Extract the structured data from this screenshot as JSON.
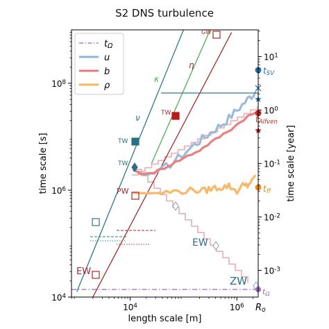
{
  "chart_data": {
    "type": "line",
    "title": "S2 DNS turbulence",
    "xlabel": "length scale [m]",
    "ylabel": "time scale [s]",
    "ylabel_right": "time scale [year]",
    "x_scale": "log",
    "y_scale": "log",
    "x_range_log10": [
      2.9,
      6.4
    ],
    "y_range_log10": [
      4.0,
      9.0
    ],
    "x_ticks": [
      {
        "log10": 4,
        "label": "10",
        "exp": "4"
      },
      {
        "log10": 6,
        "label": "10",
        "exp": "6"
      }
    ],
    "y_ticks": [
      {
        "log10": 4,
        "label": "10",
        "exp": "4"
      },
      {
        "log10": 6,
        "label": "10",
        "exp": "6"
      },
      {
        "log10": 8,
        "label": "10",
        "exp": "8"
      }
    ],
    "y_right_ticks": [
      {
        "log10s": 8.499,
        "label": "10",
        "exp": "1"
      },
      {
        "log10s": 7.499,
        "label": "10",
        "exp": "0"
      },
      {
        "log10s": 6.499,
        "label": "10",
        "exp": "-1"
      },
      {
        "log10s": 5.499,
        "label": "10",
        "exp": "-2"
      },
      {
        "log10s": 4.499,
        "label": "10",
        "exp": "-3"
      }
    ],
    "right_axis_label": "R",
    "right_axis_label_sub": "o",
    "grid": false,
    "legend": {
      "placement": "top-left",
      "entries": [
        {
          "label": "t",
          "sub": "Ω",
          "color": "#9467bd",
          "style": "dashdot"
        },
        {
          "label": "u",
          "color": "#8fb3d6",
          "style": "solid"
        },
        {
          "label": "b",
          "color": "#e87878",
          "style": "solid"
        },
        {
          "label": "ρ",
          "color": "#f5b461",
          "style": "solid"
        }
      ]
    },
    "series": [
      {
        "name": "u",
        "color": "#9bbbd9",
        "points": [
          [
            4.05,
            6.38
          ],
          [
            4.3,
            6.28
          ],
          [
            4.6,
            6.38
          ],
          [
            4.9,
            6.6
          ],
          [
            5.2,
            6.85
          ],
          [
            5.4,
            7.0
          ],
          [
            5.6,
            7.15
          ],
          [
            5.8,
            7.3
          ],
          [
            6.0,
            7.5
          ],
          [
            6.2,
            7.7
          ],
          [
            6.35,
            7.85
          ]
        ]
      },
      {
        "name": "b",
        "color": "#e88080",
        "points": [
          [
            4.05,
            6.4
          ],
          [
            4.2,
            6.3
          ],
          [
            4.45,
            6.33
          ],
          [
            4.7,
            6.45
          ],
          [
            5.0,
            6.6
          ],
          [
            5.3,
            6.75
          ],
          [
            5.6,
            6.95
          ],
          [
            5.9,
            7.15
          ],
          [
            6.2,
            7.38
          ],
          [
            6.35,
            7.45
          ]
        ]
      },
      {
        "name": "ρ",
        "color": "#f8b867",
        "points": [
          [
            4.05,
            5.95
          ],
          [
            4.3,
            5.94
          ],
          [
            4.6,
            5.95
          ],
          [
            4.9,
            5.98
          ],
          [
            5.2,
            6.0
          ],
          [
            5.4,
            5.99
          ],
          [
            5.55,
            6.04
          ],
          [
            5.7,
            6.05
          ],
          [
            5.85,
            6.08
          ],
          [
            6.0,
            5.98
          ],
          [
            6.15,
            6.12
          ],
          [
            6.25,
            6.1
          ],
          [
            6.35,
            6.28
          ]
        ]
      }
    ],
    "lines": [
      {
        "name": "ν",
        "color": "#2a7a86",
        "from": [
          3.0,
          4.1
        ],
        "to": [
          5.0,
          9.0
        ]
      },
      {
        "name": "η",
        "color": "#a8282c",
        "from": [
          3.3,
          4.0
        ],
        "to": [
          5.9,
          8.95
        ]
      },
      {
        "name": "κ",
        "color": "#4caf50",
        "from": [
          4.4,
          6.5
        ],
        "to": [
          5.5,
          9.0
        ]
      }
    ],
    "annotations": [
      {
        "text": "t",
        "sub": "SV",
        "color": "#2a6fa8"
      },
      {
        "text": "t",
        "sub": "Alfven",
        "color": "#c62828"
      },
      {
        "text": "t",
        "sub": "ff",
        "color": "#e08a1e"
      },
      {
        "text": "t",
        "sub": "Ω",
        "color": "#9467bd"
      },
      {
        "text": "TW",
        "color": "#2a6f86"
      },
      {
        "text": "TW",
        "color": "#2a6f86"
      },
      {
        "text": "TW",
        "color": "#a8282c"
      },
      {
        "text": "GW",
        "color": "#a8282c"
      },
      {
        "text": "PW",
        "color": "#a8282c"
      },
      {
        "text": "EW",
        "color": "#a8282c"
      },
      {
        "text": "EW",
        "color": "#2a6f86"
      },
      {
        "text": "ZW",
        "color": "#2a6f86"
      },
      {
        "text": "κ",
        "color": "#4caf50"
      },
      {
        "text": "η",
        "color": "#a8282c"
      },
      {
        "text": "ν",
        "color": "#2a6f86"
      }
    ]
  }
}
